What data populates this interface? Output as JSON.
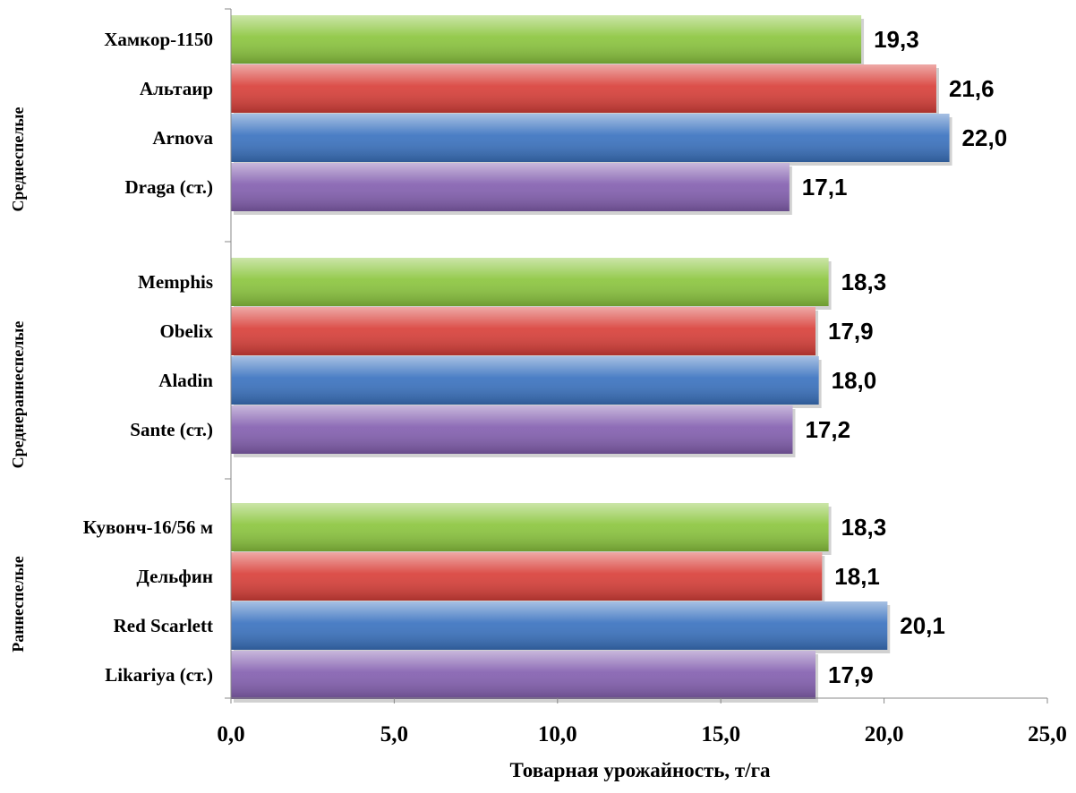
{
  "chart_data": {
    "type": "bar",
    "orientation": "horizontal",
    "xlabel": "Товарная урожайность, т/га",
    "xlim": [
      0,
      25
    ],
    "xticks": [
      "0,0",
      "5,0",
      "10,0",
      "15,0",
      "20,0",
      "25,0"
    ],
    "grid": false,
    "legend": "none",
    "groups": [
      {
        "name": "Среднеспелые",
        "items": [
          {
            "label": "Хамкор-1150",
            "value": 19.3,
            "value_label": "19,3",
            "color": "#8cc63f"
          },
          {
            "label": "Альтаир",
            "value": 21.6,
            "value_label": "21,6",
            "color": "#d9403a"
          },
          {
            "label": "Arnova",
            "value": 22.0,
            "value_label": "22,0",
            "color": "#3b73c0"
          },
          {
            "label": "Draga  (ст.)",
            "value": 17.1,
            "value_label": "17,1",
            "color": "#8460b0"
          }
        ]
      },
      {
        "name": "Среднераннеспелые",
        "items": [
          {
            "label": "Memphis",
            "value": 18.3,
            "value_label": "18,3",
            "color": "#8cc63f"
          },
          {
            "label": "Obelix",
            "value": 17.9,
            "value_label": "17,9",
            "color": "#d9403a"
          },
          {
            "label": "Aladin",
            "value": 18.0,
            "value_label": "18,0",
            "color": "#3b73c0"
          },
          {
            "label": "Sante (ст.)",
            "value": 17.2,
            "value_label": "17,2",
            "color": "#8460b0"
          }
        ]
      },
      {
        "name": "Раннеспелые",
        "items": [
          {
            "label": "Кувонч-16/56 м",
            "value": 18.3,
            "value_label": "18,3",
            "color": "#8cc63f"
          },
          {
            "label": "Дельфин",
            "value": 18.1,
            "value_label": "18,1",
            "color": "#d9403a"
          },
          {
            "label": "Red Scarlett",
            "value": 20.1,
            "value_label": "20,1",
            "color": "#3b73c0"
          },
          {
            "label": "Likariya (ст.)",
            "value": 17.9,
            "value_label": "17,9",
            "color": "#8460b0"
          }
        ]
      }
    ]
  }
}
